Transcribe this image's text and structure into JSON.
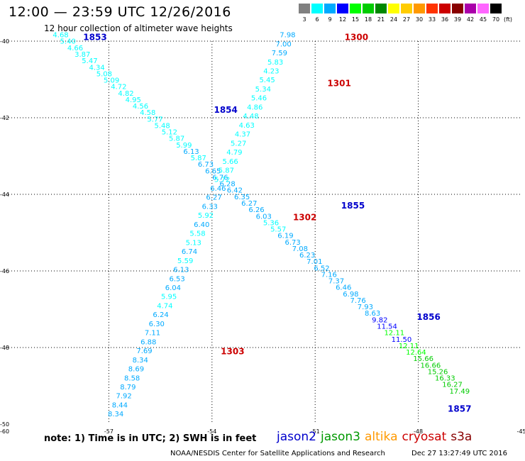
{
  "title": "12:00 — 23:59 UTC 12/26/2016",
  "subtitle": "12 hour collection of altimeter wave heights",
  "legend": {
    "unit": "(ft)",
    "levels": [
      {
        "label": "3",
        "color": "#808080"
      },
      {
        "label": "6",
        "color": "#00ffff"
      },
      {
        "label": "9",
        "color": "#00aaff"
      },
      {
        "label": "12",
        "color": "#0000ff"
      },
      {
        "label": "15",
        "color": "#00ff00"
      },
      {
        "label": "18",
        "color": "#00cc00"
      },
      {
        "label": "21",
        "color": "#008800"
      },
      {
        "label": "24",
        "color": "#ffff00"
      },
      {
        "label": "27",
        "color": "#ffcc00"
      },
      {
        "label": "30",
        "color": "#ff9900"
      },
      {
        "label": "33",
        "color": "#ff3300"
      },
      {
        "label": "36",
        "color": "#cc0000"
      },
      {
        "label": "39",
        "color": "#880000"
      },
      {
        "label": "42",
        "color": "#aa00aa"
      },
      {
        "label": "45",
        "color": "#ff66ff"
      },
      {
        "label": "70",
        "color": "#000000"
      }
    ]
  },
  "map": {
    "lon_range": [
      -60,
      -45
    ],
    "lat_range": [
      -50,
      -40
    ],
    "lon_ticks": [
      -57,
      -54,
      -51,
      -48,
      -45
    ],
    "lon_tick_labels": [
      "-57",
      "-54",
      "-51",
      "-48",
      "-45"
    ],
    "lat_ticks": [
      -40,
      -42,
      -44,
      -46,
      -48,
      -50
    ],
    "lat_tick_labels": [
      "-40",
      "-42",
      "-44",
      "-46",
      "-48",
      "-50"
    ],
    "corner_label": "-60"
  },
  "tracks": [
    {
      "satellite": "jason2",
      "start": [
        -58.4,
        -39.9
      ],
      "end": [
        -46.8,
        -49.2
      ],
      "labels": [
        {
          "text": "1853",
          "lon": -57.4,
          "lat": -39.9
        },
        {
          "text": "1854",
          "lon": -53.6,
          "lat": -41.8
        },
        {
          "text": "1855",
          "lon": -49.9,
          "lat": -44.3
        },
        {
          "text": "1856",
          "lon": -47.7,
          "lat": -47.2
        },
        {
          "text": "1857",
          "lon": -46.8,
          "lat": -49.6
        }
      ],
      "values": [
        "4.68",
        "5.40",
        "4.66",
        "3.87",
        "5.47",
        "4.34",
        "5.08",
        "5.09",
        "4.72",
        "4.82",
        "4.95",
        "4.56",
        "4.58",
        "5.77",
        "5.48",
        "5.12",
        "5.87",
        "5.99",
        "6.13",
        "5.87",
        "6.73",
        "6.65",
        "6.76",
        "6.28",
        "6.42",
        "6.35",
        "6.27",
        "6.26",
        "6.03",
        "5.36",
        "5.57",
        "6.19",
        "6.73",
        "7.08",
        "6.23",
        "7.01",
        "6.52",
        "7.16",
        "7.37",
        "6.46",
        "6.98",
        "7.76",
        "7.93",
        "8.63",
        "9.82",
        "11.54",
        "12.11",
        "11.50",
        "12.11",
        "12.64",
        "15.66",
        "16.66",
        "15.26",
        "16.33",
        "16.27",
        "17.49"
      ]
    },
    {
      "satellite": "cryosat",
      "start": [
        -51.8,
        -39.9
      ],
      "end": [
        -56.8,
        -49.8
      ],
      "labels": [
        {
          "text": "1300",
          "lon": -49.8,
          "lat": -39.9
        },
        {
          "text": "1301",
          "lon": -50.3,
          "lat": -41.1
        },
        {
          "text": "1302",
          "lon": -51.3,
          "lat": -44.6
        },
        {
          "text": "1303",
          "lon": -53.4,
          "lat": -48.1
        }
      ],
      "values": [
        "7.98",
        "7.00",
        "7.59",
        "5.83",
        "4.23",
        "5.45",
        "5.34",
        "5.46",
        "4.86",
        "4.48",
        "4.63",
        "4.37",
        "5.27",
        "4.79",
        "5.66",
        "5.87",
        "5.72",
        "6.46",
        "6.27",
        "6.33",
        "5.92",
        "6.40",
        "5.58",
        "5.13",
        "6.74",
        "5.59",
        "6.13",
        "6.53",
        "6.04",
        "5.95",
        "4.74",
        "6.24",
        "6.30",
        "7.11",
        "6.88",
        "7.69",
        "8.34",
        "8.69",
        "8.58",
        "8.79",
        "7.92",
        "8.44",
        "8.34"
      ]
    }
  ],
  "note": "note:  1) Time is in UTC;  2) SWH is in feet",
  "satellites": [
    {
      "name": "jason2",
      "color": "#0000cc"
    },
    {
      "name": "jason3",
      "color": "#009900"
    },
    {
      "name": "altika",
      "color": "#ff9900"
    },
    {
      "name": "cryosat",
      "color": "#cc0000"
    },
    {
      "name": "s3a",
      "color": "#880000"
    }
  ],
  "credit": "NOAA/NESDIS Center for Satellite Applications and Research",
  "timestamp": "Dec 27 13:27:49 UTC 2016"
}
